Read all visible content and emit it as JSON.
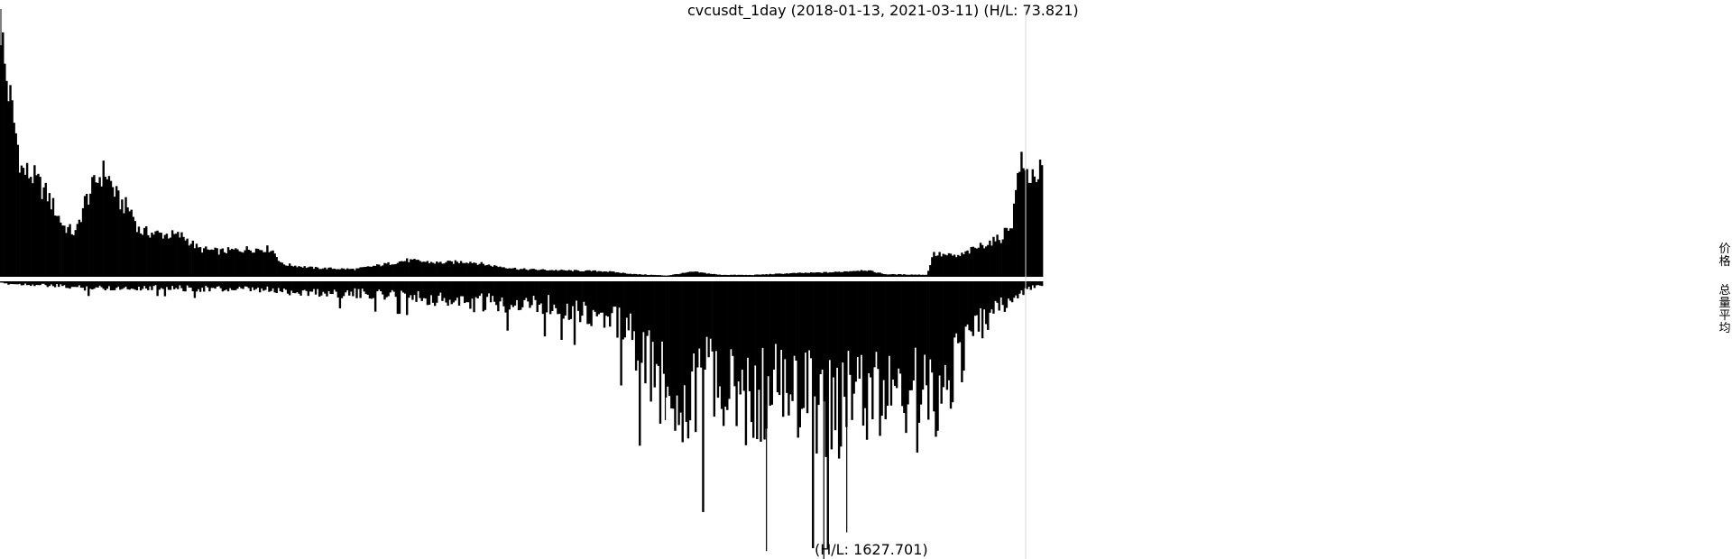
{
  "chart_data": {
    "type": "bar",
    "title": "cvcusdt_1day (2018-01-13, 2021-03-11) (H/L: 73.821)",
    "volume_label": "(H/L: 1627.701)",
    "legend": [
      "价格",
      "总量平均"
    ],
    "x_range": [
      "2018-01-13",
      "2021-03-11"
    ],
    "series": [
      {
        "name": "价格",
        "direction": "up",
        "anchors": [
          [
            0,
            1.0
          ],
          [
            0.003,
            0.84
          ],
          [
            0.012,
            0.62
          ],
          [
            0.02,
            0.42
          ],
          [
            0.03,
            0.4
          ],
          [
            0.045,
            0.32
          ],
          [
            0.06,
            0.2
          ],
          [
            0.072,
            0.17
          ],
          [
            0.08,
            0.29
          ],
          [
            0.092,
            0.38
          ],
          [
            0.1,
            0.42
          ],
          [
            0.113,
            0.3
          ],
          [
            0.125,
            0.26
          ],
          [
            0.133,
            0.18
          ],
          [
            0.15,
            0.17
          ],
          [
            0.175,
            0.16
          ],
          [
            0.19,
            0.11
          ],
          [
            0.21,
            0.1
          ],
          [
            0.24,
            0.11
          ],
          [
            0.26,
            0.11
          ],
          [
            0.27,
            0.05
          ],
          [
            0.3,
            0.035
          ],
          [
            0.34,
            0.03
          ],
          [
            0.37,
            0.05
          ],
          [
            0.39,
            0.065
          ],
          [
            0.42,
            0.055
          ],
          [
            0.45,
            0.06
          ],
          [
            0.47,
            0.045
          ],
          [
            0.5,
            0.03
          ],
          [
            0.54,
            0.025
          ],
          [
            0.58,
            0.022
          ],
          [
            0.61,
            0.01
          ],
          [
            0.64,
            0.005
          ],
          [
            0.665,
            0.02
          ],
          [
            0.69,
            0.008
          ],
          [
            0.72,
            0.007
          ],
          [
            0.76,
            0.014
          ],
          [
            0.8,
            0.018
          ],
          [
            0.83,
            0.027
          ],
          [
            0.85,
            0.01
          ],
          [
            0.89,
            0.008
          ],
          [
            0.895,
            0.09
          ],
          [
            0.92,
            0.08
          ],
          [
            0.945,
            0.13
          ],
          [
            0.96,
            0.15
          ],
          [
            0.972,
            0.22
          ],
          [
            0.978,
            0.46
          ],
          [
            0.985,
            0.4
          ],
          [
            1.0,
            0.41
          ]
        ]
      },
      {
        "name": "总量平均",
        "direction": "down",
        "anchors": [
          [
            0,
            0.01
          ],
          [
            0.03,
            0.015
          ],
          [
            0.08,
            0.03
          ],
          [
            0.15,
            0.03
          ],
          [
            0.25,
            0.04
          ],
          [
            0.3,
            0.05
          ],
          [
            0.35,
            0.06
          ],
          [
            0.4,
            0.07
          ],
          [
            0.45,
            0.1
          ],
          [
            0.5,
            0.1
          ],
          [
            0.54,
            0.12
          ],
          [
            0.57,
            0.15
          ],
          [
            0.6,
            0.22
          ],
          [
            0.615,
            0.35
          ],
          [
            0.64,
            0.5
          ],
          [
            0.66,
            0.52
          ],
          [
            0.68,
            0.45
          ],
          [
            0.7,
            0.55
          ],
          [
            0.72,
            0.55
          ],
          [
            0.74,
            0.5
          ],
          [
            0.76,
            0.5
          ],
          [
            0.78,
            0.55
          ],
          [
            0.8,
            0.6
          ],
          [
            0.82,
            0.5
          ],
          [
            0.84,
            0.55
          ],
          [
            0.86,
            0.45
          ],
          [
            0.88,
            0.55
          ],
          [
            0.9,
            0.5
          ],
          [
            0.92,
            0.35
          ],
          [
            0.94,
            0.2
          ],
          [
            0.96,
            0.12
          ],
          [
            0.98,
            0.05
          ],
          [
            1.0,
            0.015
          ]
        ]
      }
    ]
  }
}
